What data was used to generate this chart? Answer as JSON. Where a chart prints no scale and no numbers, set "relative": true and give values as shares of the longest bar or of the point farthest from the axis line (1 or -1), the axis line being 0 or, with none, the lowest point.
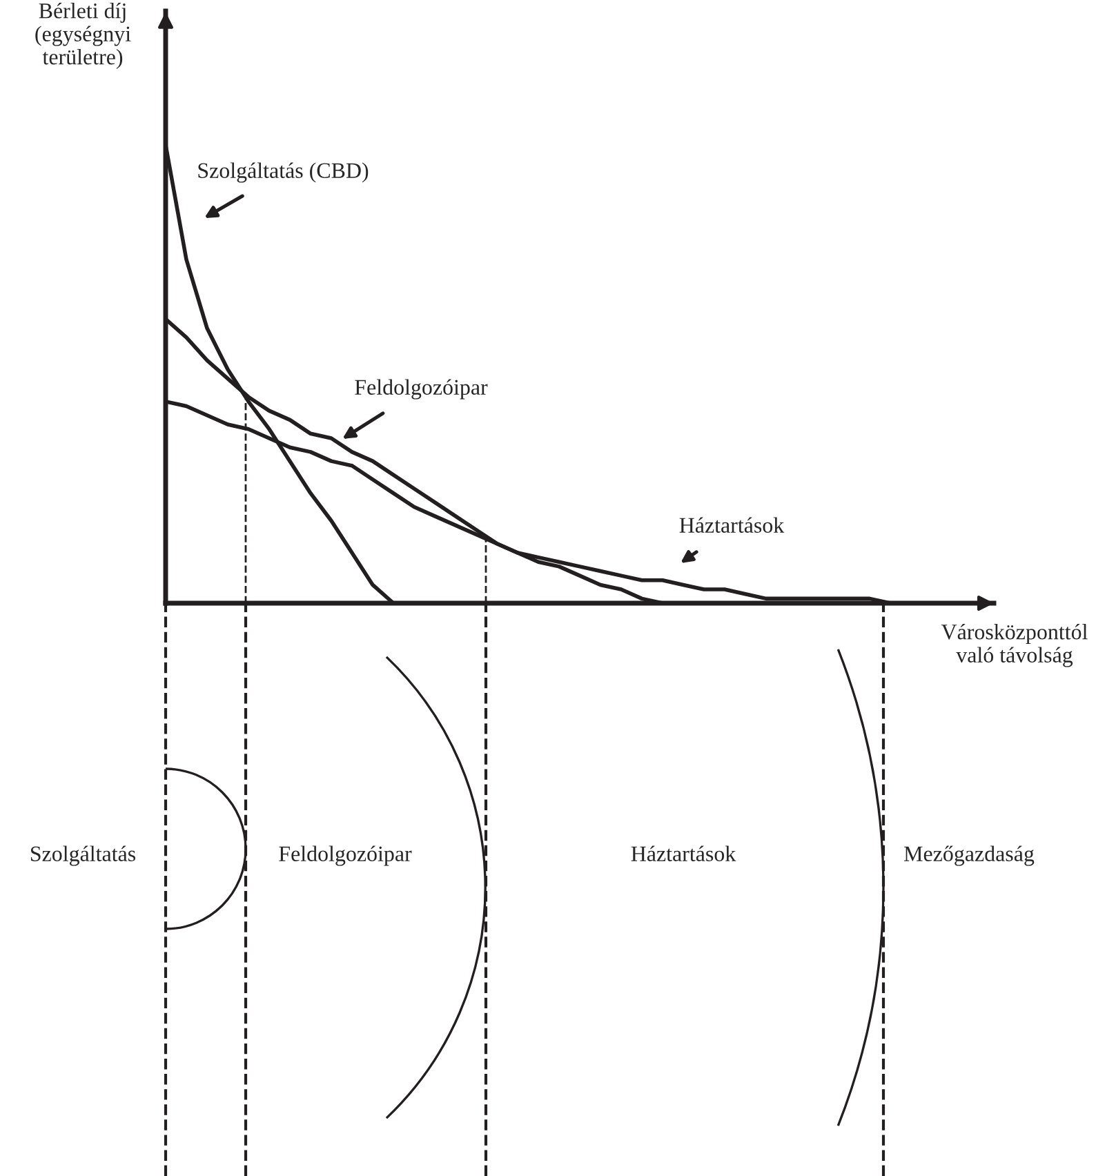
{
  "chart_data": {
    "type": "line",
    "relative": true,
    "xlabel": "Városközponttól\nvaló távolság",
    "ylabel": "Bérleti díj\n(egységnyi\nterületre)",
    "grid": false,
    "legend": false,
    "marker": "none",
    "line_style": "solid",
    "categories": [
      null,
      null,
      null,
      null,
      null,
      null,
      null,
      null,
      null,
      null,
      null,
      null,
      null,
      null,
      null,
      null,
      null,
      null,
      null,
      null,
      null,
      null,
      null,
      null,
      null,
      null,
      null,
      null,
      null,
      null,
      null,
      null,
      null,
      null,
      null,
      null,
      null,
      null,
      null,
      null,
      null
    ],
    "series": [
      {
        "color": "#231f20",
        "values": [
          1.0,
          0.75,
          0.6,
          0.51,
          0.44,
          0.38,
          0.31,
          0.24,
          0.18,
          0.11,
          0.04,
          0,
          null,
          null,
          null,
          null,
          null,
          null,
          null,
          null,
          null,
          null,
          null,
          null,
          null,
          null,
          null,
          null,
          null,
          null,
          null,
          null,
          null,
          null,
          null,
          null,
          null,
          null,
          null,
          null,
          null
        ]
      },
      {
        "color": "#231f20",
        "values": [
          0.62,
          0.58,
          0.53,
          0.49,
          0.45,
          0.42,
          0.4,
          0.37,
          0.36,
          0.33,
          0.31,
          0.28,
          0.25,
          0.22,
          0.19,
          0.16,
          0.13,
          0.11,
          0.09,
          0.08,
          0.06,
          0.04,
          0.03,
          0.01,
          0,
          null,
          null,
          null,
          null,
          null,
          null,
          null,
          null,
          null,
          null,
          null,
          null,
          null,
          null,
          null,
          null
        ]
      },
      {
        "color": "#231f20",
        "values": [
          0.44,
          0.43,
          0.41,
          0.39,
          0.38,
          0.36,
          0.34,
          0.33,
          0.31,
          0.3,
          0.27,
          0.24,
          0.21,
          0.19,
          0.17,
          0.15,
          0.13,
          0.11,
          0.1,
          0.09,
          0.08,
          0.07,
          0.06,
          0.05,
          0.05,
          0.04,
          0.03,
          0.03,
          0.02,
          0.01,
          0.01,
          0.01,
          0.01,
          0.01,
          0.01,
          0,
          null,
          null,
          null,
          null,
          null
        ]
      }
    ],
    "annotations": [
      "Szolgáltatás (CBD)",
      "Feldolgozóipar",
      "Háztartások",
      "Szolgáltatás",
      "Feldolgozóipar",
      "Háztartások",
      "Mezőgazdaság"
    ]
  }
}
